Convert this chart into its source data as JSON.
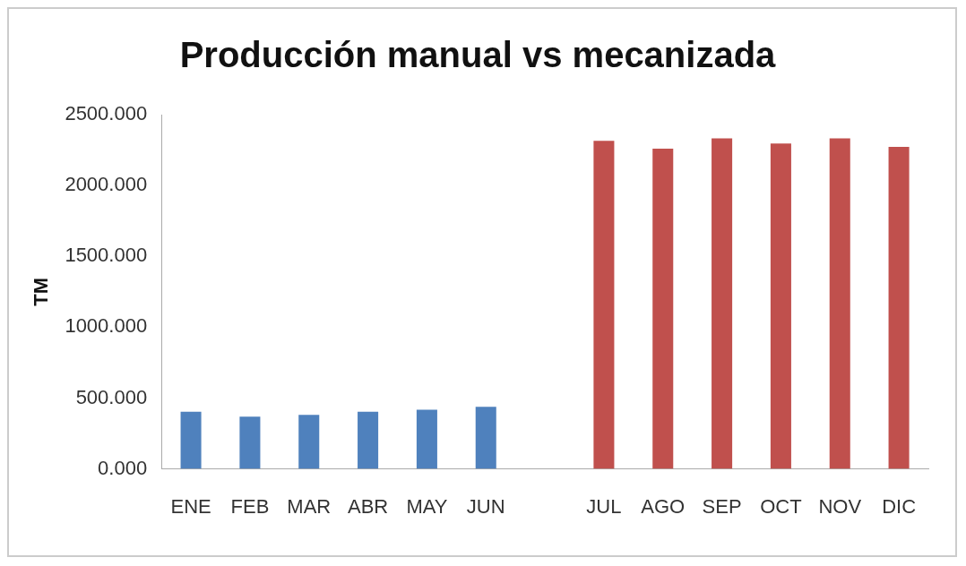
{
  "chart_data": {
    "type": "bar",
    "title": "Producción manual vs mecanizada",
    "ylabel": "TM",
    "categories": [
      "ENE",
      "FEB",
      "MAR",
      "ABR",
      "MAY",
      "JUN",
      null,
      "JUL",
      "AGO",
      "SEP",
      "OCT",
      "NOV",
      "DIC"
    ],
    "series": [
      {
        "color": "#4f81bd",
        "values": [
          404,
          369,
          382,
          404,
          417,
          439,
          null,
          null,
          null,
          null,
          null,
          null,
          null
        ]
      },
      {
        "color": "#c0504d",
        "values": [
          null,
          null,
          null,
          null,
          null,
          null,
          null,
          2315,
          2260,
          2333,
          2296,
          2333,
          2273
        ]
      }
    ],
    "ylim": [
      0,
      2500
    ],
    "yticks": [
      {
        "value": 0,
        "label": "0.000"
      },
      {
        "value": 500,
        "label": "500.000"
      },
      {
        "value": 1000,
        "label": "1000.000"
      },
      {
        "value": 1500,
        "label": "1500.000"
      },
      {
        "value": 2000,
        "label": "2000.000"
      },
      {
        "value": 2500,
        "label": "2500.000"
      }
    ],
    "grid": false,
    "legend": false
  }
}
